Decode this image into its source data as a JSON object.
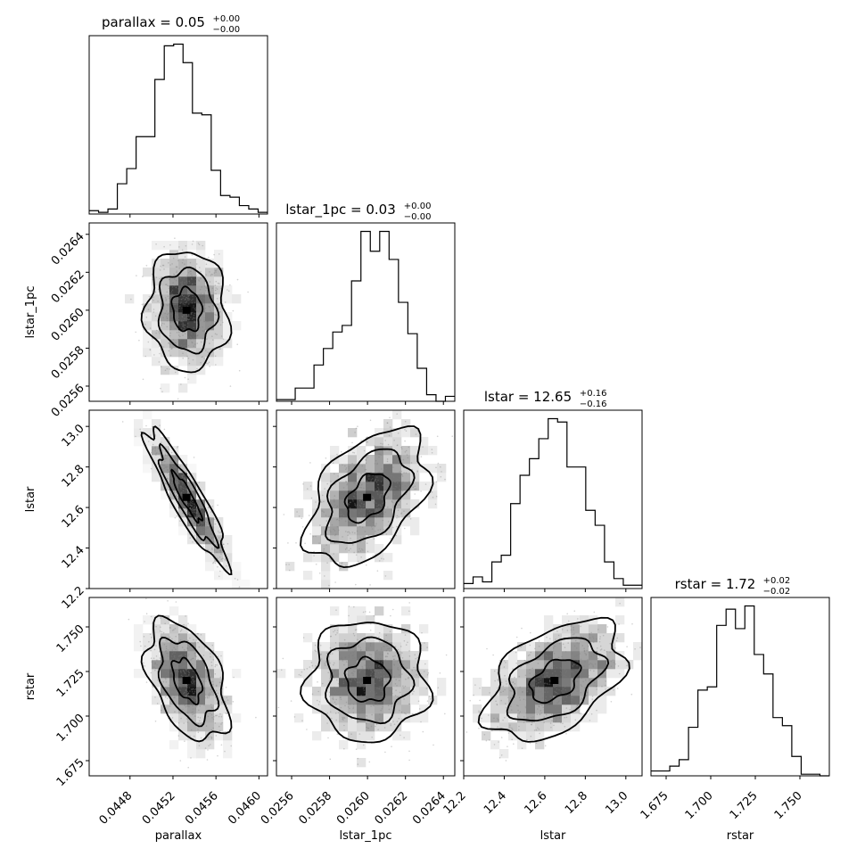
{
  "chart_data": [
    {
      "type": "histogram",
      "parameter": "parallax",
      "title": {
        "main": "parallax = 0.05",
        "sup": "+0.00",
        "sub": "−0.00"
      },
      "xlabel": "parallax",
      "xlim": [
        0.04442,
        0.04608
      ],
      "xticks": [
        "0.0448",
        "0.0452",
        "0.0456",
        "0.0460"
      ],
      "counts": [
        2,
        1,
        3,
        18,
        27,
        46,
        46,
        80,
        100,
        101,
        90,
        60,
        59,
        26,
        11,
        10,
        5,
        3,
        1
      ]
    },
    {
      "type": "histogram",
      "parameter": "lstar_1pc",
      "title": {
        "main": "lstar_1pc = 0.03",
        "sup": "+0.00",
        "sub": "−0.00"
      },
      "xlabel": "lstar_1pc",
      "xlim": [
        0.02552,
        0.02646
      ],
      "xticks": [
        "0.0256",
        "0.0258",
        "0.0260",
        "0.0262",
        "0.0264"
      ],
      "counts": [
        1,
        1,
        8,
        8,
        22,
        32,
        42,
        46,
        73,
        103,
        91,
        103,
        86,
        60,
        41,
        20,
        4,
        0,
        3
      ]
    },
    {
      "type": "histogram",
      "parameter": "lstar",
      "title": {
        "main": "lstar = 12.65",
        "sup": "+0.16",
        "sub": "−0.16"
      },
      "xlabel": "lstar",
      "xlim": [
        12.2,
        13.08
      ],
      "xticks": [
        "12.2",
        "12.4",
        "12.6",
        "12.8",
        "13.0"
      ],
      "counts": [
        3,
        7,
        4,
        16,
        20,
        51,
        68,
        78,
        90,
        102,
        100,
        73,
        73,
        47,
        38,
        16,
        6,
        2,
        2
      ]
    },
    {
      "type": "histogram",
      "parameter": "rstar",
      "title": {
        "main": "rstar = 1.72",
        "sup": "+0.02",
        "sub": "−0.02"
      },
      "xlabel": "rstar",
      "xlim": [
        1.6665,
        1.7665
      ],
      "xticks": [
        "1.675",
        "1.700",
        "1.725",
        "1.750"
      ],
      "counts": [
        3,
        3,
        6,
        10,
        30,
        53,
        55,
        93,
        103,
        91,
        105,
        75,
        63,
        36,
        31,
        12,
        1,
        1,
        0
      ]
    },
    {
      "type": "contour",
      "x": "parallax",
      "y": "lstar_1pc",
      "xlim": [
        0.04442,
        0.04608
      ],
      "ylim": [
        0.02552,
        0.02646
      ],
      "yticks": [
        "0.0256",
        "0.0258",
        "0.0260",
        "0.0262",
        "0.0264"
      ],
      "center": [
        0.04533,
        0.026
      ],
      "sigma": [
        0.00018,
        0.00015
      ],
      "rho": -0.05,
      "ylabel": "lstar_1pc"
    },
    {
      "type": "contour",
      "x": "parallax",
      "y": "lstar",
      "xlim": [
        0.04442,
        0.04608
      ],
      "ylim": [
        12.2,
        13.08
      ],
      "yticks": [
        "12.2",
        "12.4",
        "12.6",
        "12.8",
        "13.0"
      ],
      "center": [
        0.04533,
        12.65
      ],
      "sigma": [
        0.00018,
        0.16
      ],
      "rho": -0.9,
      "ylabel": "lstar"
    },
    {
      "type": "contour",
      "x": "lstar_1pc",
      "y": "lstar",
      "xlim": [
        0.02552,
        0.02646
      ],
      "ylim": [
        12.2,
        13.08
      ],
      "center": [
        0.026,
        12.65
      ],
      "sigma": [
        0.00015,
        0.16
      ],
      "rho": 0.45
    },
    {
      "type": "contour",
      "x": "parallax",
      "y": "rstar",
      "xlim": [
        0.04442,
        0.04608
      ],
      "ylim": [
        1.6665,
        1.7665
      ],
      "yticks": [
        "1.675",
        "1.700",
        "1.725",
        "1.750"
      ],
      "center": [
        0.04533,
        1.72
      ],
      "sigma": [
        0.00018,
        0.016
      ],
      "rho": -0.45,
      "ylabel": "rstar"
    },
    {
      "type": "contour",
      "x": "lstar_1pc",
      "y": "rstar",
      "xlim": [
        0.02552,
        0.02646
      ],
      "ylim": [
        1.6665,
        1.7665
      ],
      "center": [
        0.026,
        1.72
      ],
      "sigma": [
        0.00015,
        0.016
      ],
      "rho": 0.0
    },
    {
      "type": "contour",
      "x": "lstar",
      "y": "rstar",
      "xlim": [
        12.2,
        13.08
      ],
      "ylim": [
        1.6665,
        1.7665
      ],
      "center": [
        12.65,
        1.72
      ],
      "sigma": [
        0.16,
        0.016
      ],
      "rho": 0.45
    }
  ]
}
